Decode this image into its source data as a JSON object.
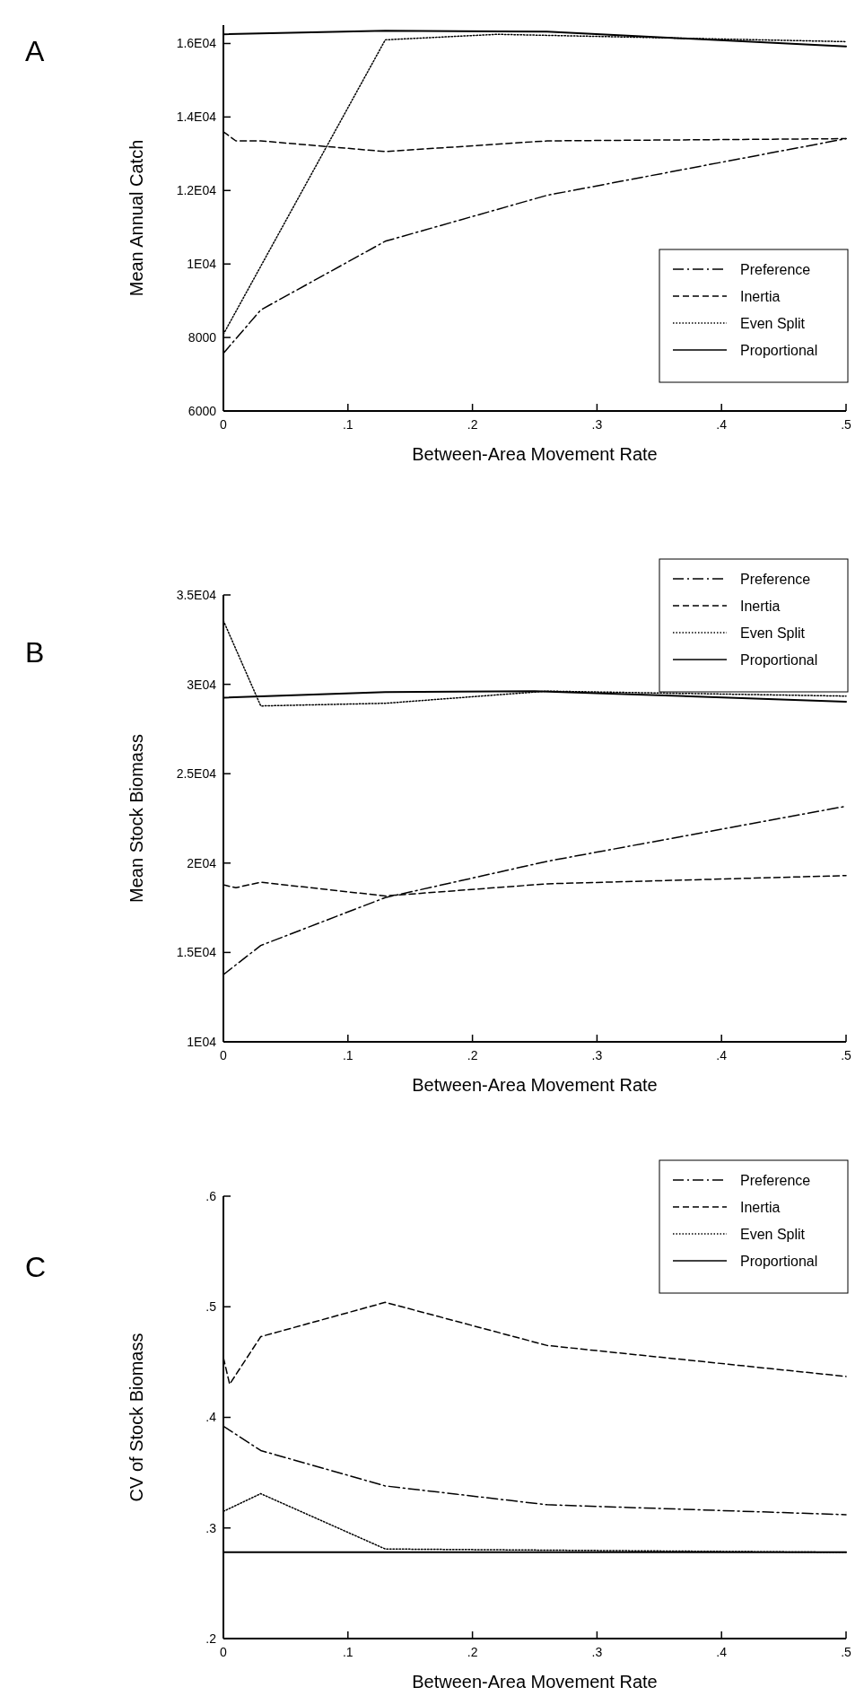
{
  "chart_data": [
    {
      "type": "line",
      "title": "A",
      "xlabel": "Between-Area Movement Rate",
      "ylabel": "Mean Annual Catch",
      "xlim": [
        0,
        0.5
      ],
      "xticks": [
        {
          "value": 0,
          "label": "0"
        },
        {
          "value": 0.1,
          "label": ".1"
        },
        {
          "value": 0.2,
          "label": ".2"
        },
        {
          "value": 0.3,
          "label": ".3"
        },
        {
          "value": 0.4,
          "label": ".4"
        },
        {
          "value": 0.5,
          "label": ".5"
        }
      ],
      "ylim": [
        6000,
        16500
      ],
      "yticks": [
        6000,
        8000,
        {
          "value": 10000,
          "label": "1E04"
        },
        {
          "value": 12000,
          "label": "1.2E04"
        },
        {
          "value": 14000,
          "label": "1.4E04"
        },
        {
          "value": 16000,
          "label": "1.6E04"
        }
      ],
      "legend": "right",
      "grid": false,
      "marker": "none",
      "series": [
        {
          "name": "Preference",
          "color": "#000000",
          "line_style": "dashdot",
          "x": [
            0,
            0.03,
            0.13,
            0.26,
            0.5
          ],
          "values": [
            7570,
            8750,
            10620,
            11870,
            13410
          ]
        },
        {
          "name": "Inertia",
          "color": "#000000",
          "line_style": "dashed",
          "x": [
            0,
            0.01,
            0.03,
            0.13,
            0.26,
            0.5
          ],
          "values": [
            13600,
            13350,
            13350,
            13060,
            13350,
            13410
          ]
        },
        {
          "name": "Even Split",
          "color": "#000000",
          "line_style": "dotted",
          "x": [
            0,
            0.13,
            0.22,
            0.5
          ],
          "values": [
            8090,
            16100,
            16250,
            16050
          ]
        },
        {
          "name": "Proportional",
          "color": "#000000",
          "line_style": "solid",
          "x": [
            0,
            0.13,
            0.26,
            0.5
          ],
          "values": [
            16250,
            16350,
            16320,
            15920
          ]
        }
      ]
    },
    {
      "type": "line",
      "title": "B",
      "xlabel": "Between-Area Movement Rate",
      "ylabel": "Mean Stock Biomass",
      "xlim": [
        0,
        0.5
      ],
      "xticks": [
        {
          "value": 0,
          "label": "0"
        },
        {
          "value": 0.1,
          "label": ".1"
        },
        {
          "value": 0.2,
          "label": ".2"
        },
        {
          "value": 0.3,
          "label": ".3"
        },
        {
          "value": 0.4,
          "label": ".4"
        },
        {
          "value": 0.5,
          "label": ".5"
        }
      ],
      "ylim": [
        10000,
        35000
      ],
      "yticks": [
        {
          "value": 10000,
          "label": "1E04"
        },
        {
          "value": 15000,
          "label": "1.5E04"
        },
        {
          "value": 20000,
          "label": "2E04"
        },
        {
          "value": 25000,
          "label": "2.5E04"
        },
        {
          "value": 30000,
          "label": "3E04"
        },
        {
          "value": 35000,
          "label": "3.5E04"
        }
      ],
      "legend": "top right",
      "grid": false,
      "marker": "none",
      "series": [
        {
          "name": "Preference",
          "color": "#000000",
          "line_style": "dashdot",
          "x": [
            0,
            0.03,
            0.13,
            0.26,
            0.5
          ],
          "values": [
            13760,
            15390,
            18070,
            20100,
            23180
          ]
        },
        {
          "name": "Inertia",
          "color": "#000000",
          "line_style": "dashed",
          "x": [
            0,
            0.01,
            0.03,
            0.13,
            0.26,
            0.5
          ],
          "values": [
            18780,
            18620,
            18930,
            18160,
            18840,
            19300
          ]
        },
        {
          "name": "Even Split",
          "color": "#000000",
          "line_style": "dotted",
          "x": [
            0,
            0.03,
            0.13,
            0.26,
            0.5
          ],
          "values": [
            33560,
            28790,
            28940,
            29620,
            29340
          ]
        },
        {
          "name": "Proportional",
          "color": "#000000",
          "line_style": "solid",
          "x": [
            0,
            0.13,
            0.25,
            0.5
          ],
          "values": [
            29250,
            29560,
            29620,
            29030
          ]
        }
      ]
    },
    {
      "type": "line",
      "title": "C",
      "xlabel": "Between-Area Movement Rate",
      "ylabel": "CV of Stock Biomass",
      "xlim": [
        0,
        0.5
      ],
      "xticks": [
        {
          "value": 0,
          "label": "0"
        },
        {
          "value": 0.1,
          "label": ".1"
        },
        {
          "value": 0.2,
          "label": ".2"
        },
        {
          "value": 0.3,
          "label": ".3"
        },
        {
          "value": 0.4,
          "label": ".4"
        },
        {
          "value": 0.5,
          "label": ".5"
        }
      ],
      "ylim": [
        0.2,
        0.6
      ],
      "yticks": [
        {
          "value": 0.2,
          "label": ".2"
        },
        {
          "value": 0.3,
          "label": ".3"
        },
        {
          "value": 0.4,
          "label": ".4"
        },
        {
          "value": 0.5,
          "label": ".5"
        },
        {
          "value": 0.6,
          "label": ".6"
        }
      ],
      "legend": "top right",
      "grid": false,
      "marker": "none",
      "series": [
        {
          "name": "Preference",
          "color": "#000000",
          "line_style": "dashdot",
          "x": [
            0,
            0.03,
            0.13,
            0.26,
            0.5
          ],
          "values": [
            0.392,
            0.37,
            0.338,
            0.321,
            0.312
          ]
        },
        {
          "name": "Inertia",
          "color": "#000000",
          "line_style": "dashed",
          "x": [
            0,
            0.005,
            0.03,
            0.13,
            0.26,
            0.5
          ],
          "values": [
            0.454,
            0.43,
            0.473,
            0.504,
            0.465,
            0.437
          ]
        },
        {
          "name": "Even Split",
          "color": "#000000",
          "line_style": "dotted",
          "x": [
            0,
            0.03,
            0.13,
            0.5
          ],
          "values": [
            0.315,
            0.331,
            0.281,
            0.278
          ]
        },
        {
          "name": "Proportional",
          "color": "#000000",
          "line_style": "solid",
          "x": [
            0,
            0.5
          ],
          "values": [
            0.278,
            0.278
          ]
        }
      ]
    }
  ]
}
